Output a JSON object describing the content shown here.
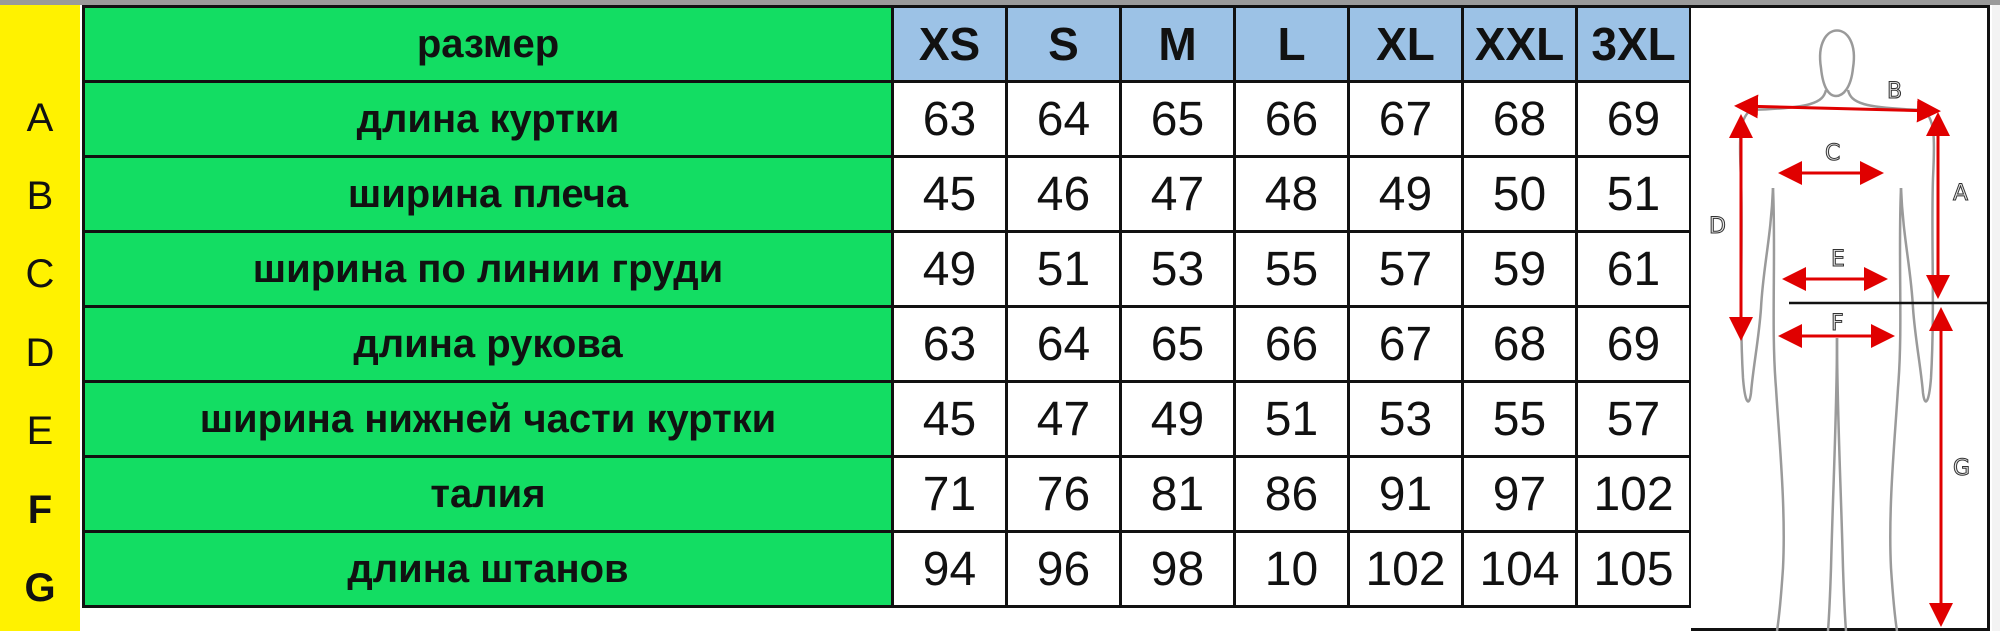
{
  "row_letters": [
    "A",
    "B",
    "C",
    "D",
    "E",
    "F",
    "G"
  ],
  "header": {
    "param_label": "размер",
    "sizes": [
      "XS",
      "S",
      "M",
      "L",
      "XL",
      "XXL",
      "3XL"
    ]
  },
  "rows": [
    {
      "label": "длина куртки",
      "values": [
        "63",
        "64",
        "65",
        "66",
        "67",
        "68",
        "69"
      ]
    },
    {
      "label": "ширина плеча",
      "values": [
        "45",
        "46",
        "47",
        "48",
        "49",
        "50",
        "51"
      ]
    },
    {
      "label": "ширина по линии груди",
      "values": [
        "49",
        "51",
        "53",
        "55",
        "57",
        "59",
        "61"
      ]
    },
    {
      "label": "длина рукова",
      "values": [
        "63",
        "64",
        "65",
        "66",
        "67",
        "68",
        "69"
      ]
    },
    {
      "label": "ширина нижней части куртки",
      "values": [
        "45",
        "47",
        "49",
        "51",
        "53",
        "55",
        "57"
      ]
    },
    {
      "label": "талия",
      "values": [
        "71",
        "76",
        "81",
        "86",
        "91",
        "97",
        "102"
      ]
    },
    {
      "label": "длина штанов",
      "values": [
        "94",
        "96",
        "98",
        "10",
        "102",
        "104",
        "105"
      ]
    }
  ],
  "figure": {
    "labels": {
      "A": "A",
      "B": "B",
      "C": "C",
      "D": "D",
      "E": "E",
      "F": "F",
      "G": "G"
    },
    "arrow_color": "#e00000"
  },
  "colors": {
    "row_letter_bg": "#fff200",
    "param_bg": "#13dd63",
    "size_header_bg": "#9cc2e6"
  }
}
